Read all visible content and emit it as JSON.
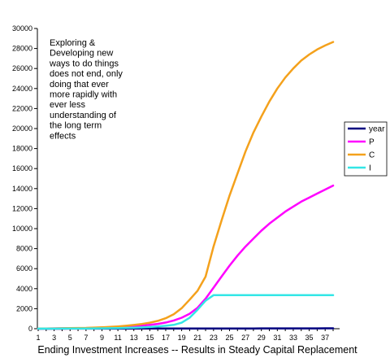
{
  "chart_data": {
    "type": "line",
    "xlabel": "Ending Investment Increases -- Results in Steady Capital Replacement",
    "ylabel": "",
    "x": [
      1,
      2,
      3,
      4,
      5,
      6,
      7,
      8,
      9,
      10,
      11,
      12,
      13,
      14,
      15,
      16,
      17,
      18,
      19,
      20,
      21,
      22,
      23,
      24,
      25,
      26,
      27,
      28,
      29,
      30,
      31,
      32,
      33,
      34,
      35,
      36,
      37,
      38
    ],
    "x_tick_labels": [
      "1",
      "3",
      "5",
      "7",
      "9",
      "11",
      "13",
      "15",
      "17",
      "19",
      "21",
      "23",
      "25",
      "27",
      "29",
      "31",
      "33",
      "35",
      "37"
    ],
    "ylim": [
      0,
      30000
    ],
    "y_ticks": [
      0,
      2000,
      4000,
      6000,
      8000,
      10000,
      12000,
      14000,
      16000,
      18000,
      20000,
      22000,
      24000,
      26000,
      28000,
      30000
    ],
    "grid": false,
    "legend_position": "right",
    "annotation": "Exploring & Developing new ways to do things does not end, only doing that ever more rapidly with ever less understanding of the long term effects",
    "annotation_lines": [
      "Exploring &",
      "Developing new",
      "ways to do things",
      "does not end, only",
      "doing that ever",
      "more rapidly with",
      "ever less",
      "understanding of",
      "the long term",
      "effects"
    ],
    "series": [
      {
        "name": "year",
        "color": "#000080",
        "values": [
          1,
          2,
          3,
          4,
          5,
          6,
          7,
          8,
          9,
          10,
          11,
          12,
          13,
          14,
          15,
          16,
          17,
          18,
          19,
          20,
          21,
          22,
          23,
          24,
          25,
          26,
          27,
          28,
          29,
          30,
          31,
          32,
          33,
          34,
          35,
          36,
          37,
          38
        ]
      },
      {
        "name": "P",
        "color": "#ff00ff",
        "values": [
          20,
          25,
          30,
          38,
          45,
          55,
          65,
          80,
          100,
          120,
          150,
          190,
          240,
          300,
          380,
          480,
          620,
          820,
          1100,
          1500,
          2100,
          3000,
          4100,
          5200,
          6300,
          7300,
          8200,
          9000,
          9800,
          10500,
          11100,
          11700,
          12200,
          12700,
          13100,
          13500,
          13900,
          14300
        ]
      },
      {
        "name": "C",
        "color": "#f4a11c",
        "values": [
          20,
          28,
          35,
          45,
          55,
          70,
          85,
          110,
          140,
          180,
          230,
          290,
          370,
          470,
          600,
          780,
          1050,
          1450,
          2050,
          2900,
          3800,
          5200,
          8200,
          10800,
          13300,
          15500,
          17700,
          19600,
          21200,
          22700,
          24000,
          25100,
          26000,
          26800,
          27400,
          27900,
          28300,
          28650
        ]
      },
      {
        "name": "I",
        "color": "#33e6e6",
        "values": [
          5,
          8,
          10,
          13,
          16,
          20,
          25,
          30,
          40,
          50,
          65,
          80,
          100,
          130,
          170,
          220,
          290,
          380,
          600,
          1100,
          1900,
          2800,
          3350,
          3350,
          3350,
          3350,
          3350,
          3350,
          3350,
          3350,
          3350,
          3350,
          3350,
          3350,
          3350,
          3350,
          3350,
          3350
        ]
      }
    ]
  }
}
